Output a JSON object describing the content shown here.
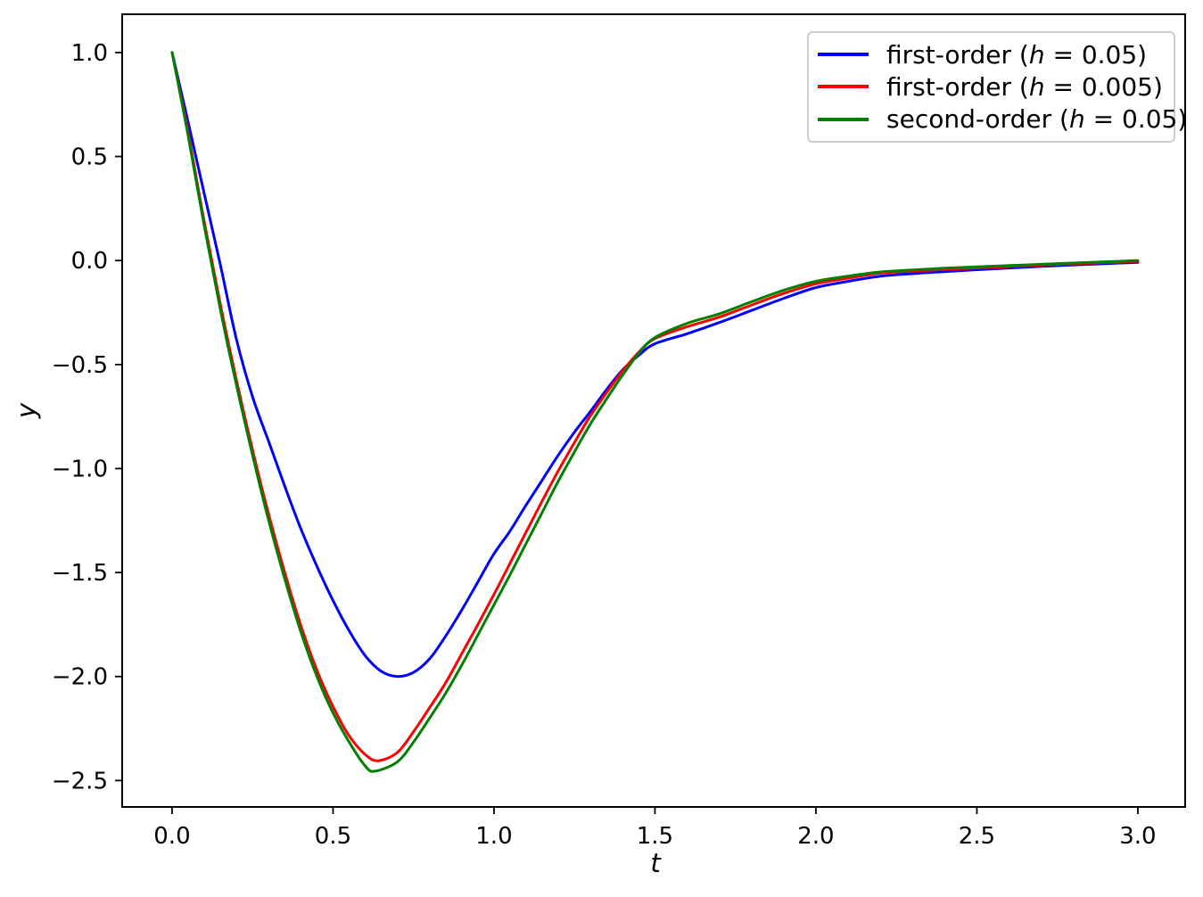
{
  "chart_data": {
    "type": "line",
    "title": "",
    "xlabel": "t",
    "ylabel": "y",
    "xlim": [
      -0.155,
      3.147
    ],
    "ylim": [
      -2.627,
      1.184
    ],
    "grid": false,
    "legend_position": "upper right",
    "xtick_values": [
      0.0,
      0.5,
      1.0,
      1.5,
      2.0,
      2.5,
      3.0
    ],
    "xtick_labels": [
      "0.0",
      "0.5",
      "1.0",
      "1.5",
      "2.0",
      "2.5",
      "3.0"
    ],
    "ytick_values": [
      1.0,
      0.5,
      0.0,
      -0.5,
      -1.0,
      -1.5,
      -2.0,
      -2.5
    ],
    "ytick_labels": [
      "1.0",
      "0.5",
      "0.0",
      "−0.5",
      "−1.0",
      "−1.5",
      "−2.0",
      "−2.5"
    ],
    "colors": {
      "spine": "#000000",
      "tick": "#000000",
      "text": "#000000",
      "legend_border": "#cccccc",
      "background": "#ffffff"
    },
    "series": [
      {
        "name": "first-order (h = 0.05)",
        "label_prefix": "first-order (",
        "label_param": "h",
        "label_suffix": " = 0.05)",
        "color": "#0000ff",
        "min_point": [
          0.66,
          -2.0
        ],
        "points": [
          [
            0.0,
            1.0
          ],
          [
            0.05,
            0.665
          ],
          [
            0.1,
            0.32
          ],
          [
            0.15,
            -0.02
          ],
          [
            0.2,
            -0.38
          ],
          [
            0.25,
            -0.655
          ],
          [
            0.3,
            -0.87
          ],
          [
            0.35,
            -1.085
          ],
          [
            0.4,
            -1.29
          ],
          [
            0.45,
            -1.47
          ],
          [
            0.5,
            -1.635
          ],
          [
            0.55,
            -1.78
          ],
          [
            0.6,
            -1.9
          ],
          [
            0.65,
            -1.975
          ],
          [
            0.7,
            -2.0
          ],
          [
            0.75,
            -1.98
          ],
          [
            0.8,
            -1.915
          ],
          [
            0.85,
            -1.805
          ],
          [
            0.9,
            -1.68
          ],
          [
            0.95,
            -1.545
          ],
          [
            1.0,
            -1.41
          ],
          [
            1.05,
            -1.3
          ],
          [
            1.1,
            -1.175
          ],
          [
            1.15,
            -1.055
          ],
          [
            1.2,
            -0.935
          ],
          [
            1.25,
            -0.825
          ],
          [
            1.3,
            -0.725
          ],
          [
            1.35,
            -0.62
          ],
          [
            1.4,
            -0.525
          ],
          [
            1.45,
            -0.455
          ],
          [
            1.5,
            -0.4
          ],
          [
            1.6,
            -0.352
          ],
          [
            1.7,
            -0.298
          ],
          [
            1.8,
            -0.24
          ],
          [
            1.9,
            -0.182
          ],
          [
            2.0,
            -0.13
          ],
          [
            2.1,
            -0.1
          ],
          [
            2.2,
            -0.075
          ],
          [
            2.3,
            -0.063
          ],
          [
            2.4,
            -0.053
          ],
          [
            2.5,
            -0.044
          ],
          [
            2.6,
            -0.036
          ],
          [
            2.7,
            -0.028
          ],
          [
            2.8,
            -0.021
          ],
          [
            2.9,
            -0.015
          ],
          [
            3.0,
            -0.009
          ]
        ]
      },
      {
        "name": "first-order (h = 0.005)",
        "label_prefix": "first-order (",
        "label_param": "h",
        "label_suffix": " = 0.005)",
        "color": "#ff0000",
        "min_point": [
          0.64,
          -2.41
        ],
        "points": [
          [
            0.0,
            1.0
          ],
          [
            0.05,
            0.615
          ],
          [
            0.1,
            0.185
          ],
          [
            0.15,
            -0.21
          ],
          [
            0.2,
            -0.575
          ],
          [
            0.25,
            -0.91
          ],
          [
            0.3,
            -1.22
          ],
          [
            0.35,
            -1.5
          ],
          [
            0.4,
            -1.755
          ],
          [
            0.45,
            -1.97
          ],
          [
            0.5,
            -2.145
          ],
          [
            0.55,
            -2.285
          ],
          [
            0.6,
            -2.375
          ],
          [
            0.64,
            -2.405
          ],
          [
            0.7,
            -2.365
          ],
          [
            0.75,
            -2.265
          ],
          [
            0.8,
            -2.15
          ],
          [
            0.85,
            -2.03
          ],
          [
            0.9,
            -1.89
          ],
          [
            0.95,
            -1.75
          ],
          [
            1.0,
            -1.605
          ],
          [
            1.05,
            -1.455
          ],
          [
            1.1,
            -1.305
          ],
          [
            1.15,
            -1.155
          ],
          [
            1.2,
            -1.01
          ],
          [
            1.25,
            -0.875
          ],
          [
            1.3,
            -0.745
          ],
          [
            1.35,
            -0.635
          ],
          [
            1.4,
            -0.53
          ],
          [
            1.45,
            -0.44
          ],
          [
            1.5,
            -0.375
          ],
          [
            1.6,
            -0.318
          ],
          [
            1.7,
            -0.272
          ],
          [
            1.8,
            -0.214
          ],
          [
            1.9,
            -0.158
          ],
          [
            2.0,
            -0.112
          ],
          [
            2.1,
            -0.085
          ],
          [
            2.2,
            -0.061
          ],
          [
            2.3,
            -0.051
          ],
          [
            2.4,
            -0.043
          ],
          [
            2.5,
            -0.036
          ],
          [
            2.6,
            -0.029
          ],
          [
            2.7,
            -0.022
          ],
          [
            2.8,
            -0.016
          ],
          [
            2.9,
            -0.01
          ],
          [
            3.0,
            -0.004
          ]
        ]
      },
      {
        "name": "second-order (h = 0.05)",
        "label_prefix": "second-order (",
        "label_param": "h",
        "label_suffix": " = 0.05)",
        "color": "#008000",
        "min_point": [
          0.62,
          -2.46
        ],
        "points": [
          [
            0.0,
            1.0
          ],
          [
            0.05,
            0.6
          ],
          [
            0.1,
            0.165
          ],
          [
            0.15,
            -0.235
          ],
          [
            0.2,
            -0.6
          ],
          [
            0.25,
            -0.935
          ],
          [
            0.3,
            -1.25
          ],
          [
            0.35,
            -1.53
          ],
          [
            0.4,
            -1.785
          ],
          [
            0.45,
            -2.0
          ],
          [
            0.5,
            -2.175
          ],
          [
            0.55,
            -2.315
          ],
          [
            0.6,
            -2.43
          ],
          [
            0.63,
            -2.455
          ],
          [
            0.7,
            -2.41
          ],
          [
            0.75,
            -2.315
          ],
          [
            0.8,
            -2.2
          ],
          [
            0.85,
            -2.08
          ],
          [
            0.9,
            -1.945
          ],
          [
            0.95,
            -1.8
          ],
          [
            1.0,
            -1.655
          ],
          [
            1.05,
            -1.51
          ],
          [
            1.1,
            -1.36
          ],
          [
            1.15,
            -1.21
          ],
          [
            1.2,
            -1.06
          ],
          [
            1.25,
            -0.92
          ],
          [
            1.3,
            -0.785
          ],
          [
            1.35,
            -0.665
          ],
          [
            1.4,
            -0.55
          ],
          [
            1.45,
            -0.445
          ],
          [
            1.5,
            -0.37
          ],
          [
            1.6,
            -0.302
          ],
          [
            1.7,
            -0.256
          ],
          [
            1.8,
            -0.198
          ],
          [
            1.9,
            -0.143
          ],
          [
            2.0,
            -0.1
          ],
          [
            2.1,
            -0.075
          ],
          [
            2.2,
            -0.055
          ],
          [
            2.3,
            -0.045
          ],
          [
            2.4,
            -0.037
          ],
          [
            2.5,
            -0.03
          ],
          [
            2.6,
            -0.024
          ],
          [
            2.7,
            -0.018
          ],
          [
            2.8,
            -0.012
          ],
          [
            2.9,
            -0.006
          ],
          [
            3.0,
            0.0
          ]
        ]
      }
    ]
  }
}
